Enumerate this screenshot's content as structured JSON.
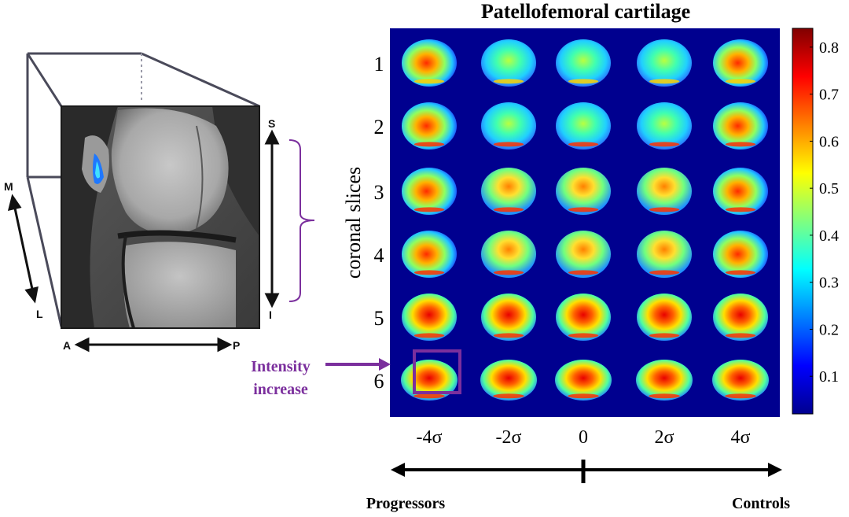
{
  "figure": {
    "title": "Patellofemoral cartilage",
    "y_axis_label": "coronal slices",
    "row_labels": [
      "1",
      "2",
      "3",
      "4",
      "5",
      "6"
    ],
    "column_labels": [
      "-4σ",
      "-2σ",
      "0",
      "2σ",
      "4σ"
    ],
    "colorbar_ticks": [
      "0.8",
      "0.7",
      "0.6",
      "0.5",
      "0.4",
      "0.3",
      "0.2",
      "0.1"
    ],
    "colorbar_range": [
      0.02,
      0.84
    ],
    "annotation": {
      "line1": "Intensity",
      "line2": "increase",
      "color": "#7b2f9d"
    },
    "bottom_left_label": "Progressors",
    "bottom_right_label": "Controls"
  },
  "knee_panel": {
    "axis_s": "S",
    "axis_i": "I",
    "axis_m": "M",
    "axis_l": "L",
    "axis_a": "A",
    "axis_p": "P",
    "bracket_color": "#7b2f9d"
  },
  "colors": {
    "heatmap_background": "#00008f",
    "accent_purple": "#7b2f9d"
  }
}
